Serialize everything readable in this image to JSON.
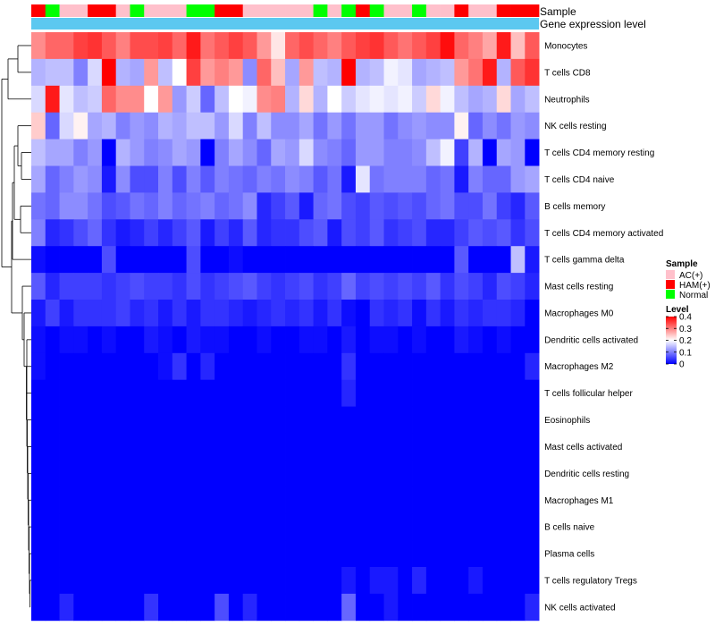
{
  "chart_data": {
    "type": "heatmap",
    "title": "",
    "annotation_labels": {
      "sample": "Sample",
      "gene_expression": "Gene expression level"
    },
    "groups": {
      "AC(+)": "#FFC0CB",
      "HAM(+)": "#FF0000",
      "Normal": "#00FF00"
    },
    "gene_expression_color": "#5CC8F0",
    "sample_groups": [
      "HAM(+)",
      "Normal",
      "AC(+)",
      "AC(+)",
      "HAM(+)",
      "HAM(+)",
      "AC(+)",
      "Normal",
      "AC(+)",
      "AC(+)",
      "AC(+)",
      "Normal",
      "Normal",
      "HAM(+)",
      "HAM(+)",
      "AC(+)",
      "AC(+)",
      "AC(+)",
      "AC(+)",
      "AC(+)",
      "Normal",
      "AC(+)",
      "Normal",
      "HAM(+)",
      "Normal",
      "AC(+)",
      "AC(+)",
      "Normal",
      "AC(+)",
      "AC(+)",
      "HAM(+)",
      "AC(+)",
      "AC(+)",
      "HAM(+)",
      "HAM(+)",
      "HAM(+)"
    ],
    "rows": [
      "Monocytes",
      "T cells CD8",
      "Neutrophils",
      "NK cells resting",
      "T cells CD4 memory resting",
      "T cells CD4 naive",
      "B cells memory",
      "T cells CD4 memory activated",
      "T cells gamma delta",
      "Mast cells resting",
      "Macrophages M0",
      "Dendritic cells activated",
      "Macrophages M2",
      "T cells follicular helper",
      "Eosinophils",
      "Mast cells activated",
      "Dendritic cells resting",
      "Macrophages M1",
      "B cells naive",
      "Plasma cells",
      "T cells regulatory  Tregs",
      "NK cells activated"
    ],
    "values": [
      [
        0.29,
        0.32,
        0.32,
        0.35,
        0.36,
        0.33,
        0.3,
        0.34,
        0.34,
        0.35,
        0.32,
        0.38,
        0.31,
        0.33,
        0.35,
        0.33,
        0.28,
        0.22,
        0.32,
        0.34,
        0.32,
        0.3,
        0.33,
        0.35,
        0.36,
        0.33,
        0.31,
        0.33,
        0.35,
        0.39,
        0.32,
        0.3,
        0.27,
        0.38,
        0.25,
        0.33
      ],
      [
        0.14,
        0.15,
        0.15,
        0.1,
        0.17,
        0.4,
        0.14,
        0.13,
        0.28,
        0.15,
        0.2,
        0.35,
        0.28,
        0.3,
        0.28,
        0.11,
        0.32,
        0.25,
        0.13,
        0.28,
        0.15,
        0.14,
        0.4,
        0.14,
        0.15,
        0.19,
        0.18,
        0.13,
        0.14,
        0.15,
        0.28,
        0.31,
        0.38,
        0.14,
        0.33,
        0.36
      ],
      [
        0.17,
        0.38,
        0.18,
        0.15,
        0.16,
        0.32,
        0.29,
        0.29,
        0.2,
        0.28,
        0.12,
        0.16,
        0.08,
        0.15,
        0.2,
        0.19,
        0.29,
        0.3,
        0.14,
        0.23,
        0.14,
        0.2,
        0.16,
        0.18,
        0.19,
        0.18,
        0.19,
        0.16,
        0.23,
        0.19,
        0.15,
        0.13,
        0.14,
        0.23,
        0.13,
        0.15
      ],
      [
        0.24,
        0.08,
        0.17,
        0.21,
        0.13,
        0.14,
        0.1,
        0.12,
        0.11,
        0.14,
        0.13,
        0.15,
        0.15,
        0.12,
        0.17,
        0.1,
        0.15,
        0.11,
        0.11,
        0.13,
        0.09,
        0.12,
        0.09,
        0.12,
        0.12,
        0.09,
        0.11,
        0.12,
        0.11,
        0.11,
        0.21,
        0.08,
        0.11,
        0.09,
        0.12,
        0.11
      ],
      [
        0.15,
        0.13,
        0.13,
        0.1,
        0.12,
        0.0,
        0.14,
        0.12,
        0.1,
        0.11,
        0.13,
        0.12,
        0.0,
        0.1,
        0.13,
        0.11,
        0.08,
        0.13,
        0.12,
        0.17,
        0.11,
        0.1,
        0.08,
        0.12,
        0.12,
        0.1,
        0.1,
        0.11,
        0.15,
        0.19,
        0.05,
        0.14,
        0.0,
        0.13,
        0.12,
        0.0
      ],
      [
        0.13,
        0.08,
        0.1,
        0.12,
        0.11,
        0.02,
        0.11,
        0.06,
        0.06,
        0.1,
        0.06,
        0.1,
        0.07,
        0.1,
        0.09,
        0.08,
        0.1,
        0.09,
        0.11,
        0.1,
        0.07,
        0.09,
        0.02,
        0.18,
        0.09,
        0.1,
        0.1,
        0.1,
        0.08,
        0.09,
        0.02,
        0.1,
        0.08,
        0.08,
        0.12,
        0.13
      ],
      [
        0.09,
        0.08,
        0.11,
        0.11,
        0.09,
        0.06,
        0.07,
        0.09,
        0.08,
        0.1,
        0.08,
        0.09,
        0.1,
        0.08,
        0.09,
        0.11,
        0.03,
        0.05,
        0.07,
        0.02,
        0.08,
        0.09,
        0.06,
        0.05,
        0.07,
        0.06,
        0.07,
        0.06,
        0.08,
        0.09,
        0.06,
        0.06,
        0.09,
        0.05,
        0.03,
        0.07
      ],
      [
        0.1,
        0.03,
        0.04,
        0.06,
        0.08,
        0.04,
        0.02,
        0.03,
        0.05,
        0.03,
        0.05,
        0.07,
        0.02,
        0.05,
        0.03,
        0.07,
        0.03,
        0.04,
        0.04,
        0.06,
        0.07,
        0.02,
        0.06,
        0.05,
        0.07,
        0.04,
        0.05,
        0.06,
        0.03,
        0.03,
        0.05,
        0.07,
        0.06,
        0.07,
        0.04,
        0.06
      ],
      [
        0.01,
        0.0,
        0.0,
        0.0,
        0.0,
        0.06,
        0.0,
        0.0,
        0.0,
        0.0,
        0.0,
        0.06,
        0.0,
        0.0,
        0.01,
        0.0,
        0.0,
        0.0,
        0.0,
        0.0,
        0.0,
        0.0,
        0.0,
        0.0,
        0.0,
        0.0,
        0.0,
        0.0,
        0.0,
        0.0,
        0.07,
        0.0,
        0.0,
        0.0,
        0.15,
        0.02
      ],
      [
        0.07,
        0.03,
        0.05,
        0.05,
        0.05,
        0.04,
        0.05,
        0.06,
        0.05,
        0.05,
        0.04,
        0.06,
        0.04,
        0.05,
        0.06,
        0.07,
        0.05,
        0.04,
        0.05,
        0.06,
        0.04,
        0.05,
        0.08,
        0.05,
        0.06,
        0.05,
        0.06,
        0.05,
        0.07,
        0.04,
        0.06,
        0.05,
        0.03,
        0.06,
        0.05,
        0.03
      ],
      [
        0.02,
        0.05,
        0.02,
        0.04,
        0.04,
        0.04,
        0.05,
        0.03,
        0.04,
        0.02,
        0.04,
        0.02,
        0.04,
        0.04,
        0.03,
        0.02,
        0.03,
        0.04,
        0.03,
        0.04,
        0.02,
        0.04,
        0.01,
        0.0,
        0.04,
        0.03,
        0.04,
        0.01,
        0.04,
        0.02,
        0.04,
        0.03,
        0.04,
        0.04,
        0.03,
        0.0
      ],
      [
        0.01,
        0.0,
        0.01,
        0.01,
        0.0,
        0.01,
        0.0,
        0.0,
        0.02,
        0.01,
        0.0,
        0.02,
        0.01,
        0.01,
        0.0,
        0.0,
        0.01,
        0.0,
        0.0,
        0.01,
        0.01,
        0.0,
        0.02,
        0.0,
        0.01,
        0.01,
        0.0,
        0.01,
        0.0,
        0.0,
        0.02,
        0.01,
        0.0,
        0.01,
        0.0,
        0.0
      ],
      [
        0.01,
        0.0,
        0.0,
        0.0,
        0.0,
        0.0,
        0.0,
        0.0,
        0.0,
        0.01,
        0.04,
        0.0,
        0.03,
        0.0,
        0.0,
        0.0,
        0.0,
        0.0,
        0.0,
        0.0,
        0.0,
        0.0,
        0.04,
        0.0,
        0.0,
        0.0,
        0.0,
        0.0,
        0.0,
        0.0,
        0.0,
        0.0,
        0.0,
        0.0,
        0.0,
        0.03
      ],
      [
        0.0,
        0.0,
        0.0,
        0.0,
        0.0,
        0.0,
        0.0,
        0.0,
        0.0,
        0.0,
        0.0,
        0.0,
        0.0,
        0.0,
        0.0,
        0.0,
        0.0,
        0.0,
        0.0,
        0.0,
        0.0,
        0.0,
        0.03,
        0.0,
        0.0,
        0.0,
        0.0,
        0.0,
        0.0,
        0.0,
        0.0,
        0.0,
        0.0,
        0.0,
        0.0,
        0.0
      ],
      [
        0.0,
        0.0,
        0.0,
        0.0,
        0.0,
        0.0,
        0.0,
        0.0,
        0.0,
        0.0,
        0.0,
        0.0,
        0.0,
        0.0,
        0.0,
        0.0,
        0.0,
        0.0,
        0.0,
        0.0,
        0.0,
        0.0,
        0.0,
        0.0,
        0.0,
        0.0,
        0.0,
        0.0,
        0.0,
        0.0,
        0.0,
        0.0,
        0.0,
        0.0,
        0.0,
        0.0
      ],
      [
        0.0,
        0.0,
        0.0,
        0.0,
        0.0,
        0.0,
        0.0,
        0.0,
        0.0,
        0.0,
        0.0,
        0.0,
        0.0,
        0.0,
        0.0,
        0.0,
        0.0,
        0.0,
        0.0,
        0.0,
        0.0,
        0.0,
        0.0,
        0.0,
        0.0,
        0.0,
        0.0,
        0.0,
        0.0,
        0.0,
        0.0,
        0.0,
        0.0,
        0.0,
        0.0,
        0.0
      ],
      [
        0.0,
        0.0,
        0.0,
        0.0,
        0.0,
        0.0,
        0.0,
        0.0,
        0.0,
        0.0,
        0.0,
        0.0,
        0.0,
        0.0,
        0.0,
        0.0,
        0.0,
        0.0,
        0.0,
        0.0,
        0.0,
        0.0,
        0.0,
        0.0,
        0.0,
        0.0,
        0.0,
        0.0,
        0.0,
        0.0,
        0.0,
        0.0,
        0.0,
        0.0,
        0.0,
        0.0
      ],
      [
        0.0,
        0.0,
        0.0,
        0.0,
        0.0,
        0.0,
        0.0,
        0.0,
        0.0,
        0.0,
        0.0,
        0.0,
        0.0,
        0.0,
        0.0,
        0.0,
        0.0,
        0.0,
        0.0,
        0.0,
        0.0,
        0.0,
        0.0,
        0.0,
        0.0,
        0.0,
        0.0,
        0.0,
        0.0,
        0.0,
        0.0,
        0.0,
        0.0,
        0.0,
        0.0,
        0.0
      ],
      [
        0.0,
        0.0,
        0.0,
        0.0,
        0.0,
        0.0,
        0.0,
        0.0,
        0.0,
        0.0,
        0.0,
        0.0,
        0.0,
        0.0,
        0.0,
        0.0,
        0.0,
        0.0,
        0.0,
        0.0,
        0.0,
        0.0,
        0.0,
        0.0,
        0.0,
        0.0,
        0.0,
        0.0,
        0.0,
        0.0,
        0.0,
        0.0,
        0.0,
        0.0,
        0.0,
        0.0
      ],
      [
        0.0,
        0.0,
        0.0,
        0.0,
        0.0,
        0.0,
        0.0,
        0.0,
        0.0,
        0.0,
        0.0,
        0.0,
        0.0,
        0.0,
        0.0,
        0.0,
        0.0,
        0.0,
        0.0,
        0.0,
        0.0,
        0.0,
        0.0,
        0.0,
        0.0,
        0.0,
        0.0,
        0.0,
        0.0,
        0.0,
        0.0,
        0.0,
        0.0,
        0.0,
        0.0,
        0.0
      ],
      [
        0.0,
        0.0,
        0.0,
        0.0,
        0.0,
        0.0,
        0.0,
        0.0,
        0.0,
        0.0,
        0.0,
        0.0,
        0.0,
        0.0,
        0.0,
        0.0,
        0.0,
        0.0,
        0.0,
        0.0,
        0.0,
        0.0,
        0.02,
        0.0,
        0.02,
        0.02,
        0.0,
        0.03,
        0.0,
        0.0,
        0.0,
        0.02,
        0.0,
        0.0,
        0.0,
        0.0
      ],
      [
        0.0,
        0.0,
        0.03,
        0.0,
        0.0,
        0.0,
        0.0,
        0.0,
        0.04,
        0.0,
        0.0,
        0.0,
        0.0,
        0.06,
        0.0,
        0.03,
        0.0,
        0.0,
        0.0,
        0.0,
        0.0,
        0.0,
        0.08,
        0.0,
        0.0,
        0.02,
        0.0,
        0.0,
        0.0,
        0.0,
        0.0,
        0.0,
        0.0,
        0.0,
        0.0,
        0.03
      ]
    ],
    "legend": {
      "sample_title": "Sample",
      "sample_entries": [
        "AC(+)",
        "HAM(+)",
        "Normal"
      ],
      "level_title": "Level",
      "level_ticks": [
        "0.4",
        "0.3",
        "0.2",
        "0.1",
        "0"
      ],
      "level_min": 0,
      "level_max": 0.4
    },
    "colorscale": {
      "low": "#0000FF",
      "mid": "#FFFFFF",
      "high": "#FF0000",
      "mid_value": 0.2
    }
  }
}
